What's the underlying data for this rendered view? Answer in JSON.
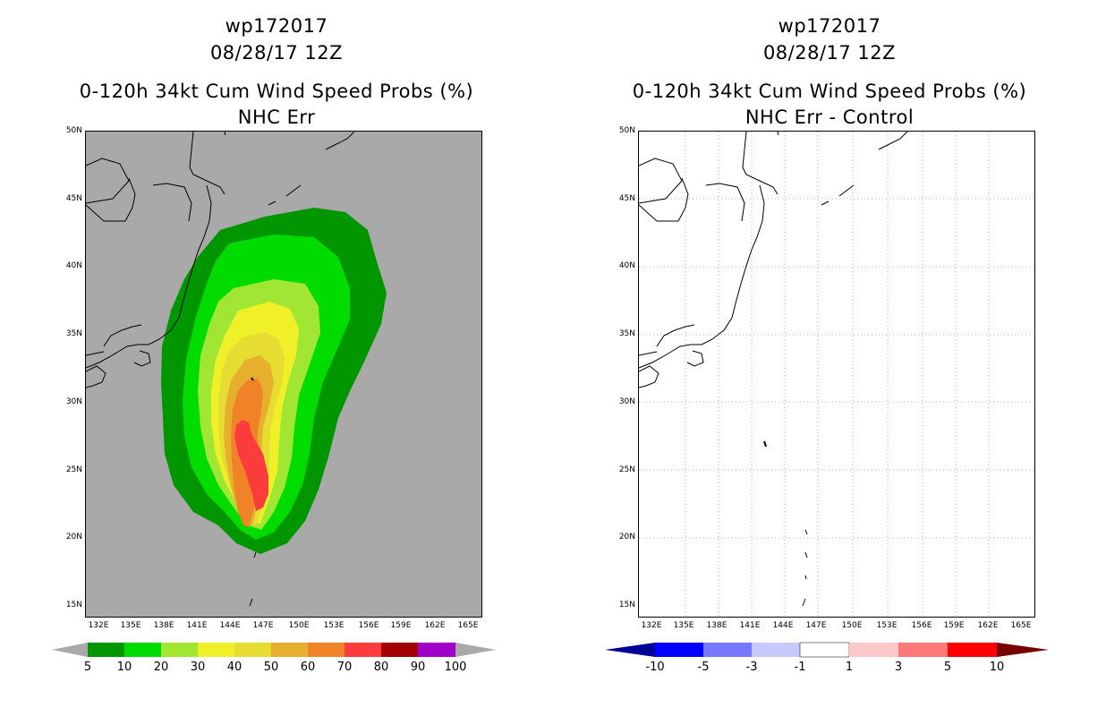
{
  "left_panel": {
    "storm_id": "wp172017",
    "datetime": "08/28/17 12Z",
    "product": "0-120h 34kt Cum Wind Speed Probs (%)",
    "subtitle": "NHC Err",
    "colors": {
      "ocean": "#a9a9a9",
      "coast": "#000000"
    },
    "colorbar": {
      "labels": [
        "5",
        "10",
        "20",
        "30",
        "40",
        "50",
        "60",
        "70",
        "80",
        "90",
        "100"
      ],
      "colors": [
        "#009600",
        "#00dc00",
        "#a0e632",
        "#f0f028",
        "#e6dc32",
        "#e6af2d",
        "#f08228",
        "#fa3c3c",
        "#a00000",
        "#a000c8"
      ],
      "end_color": "#a9a9a9"
    }
  },
  "right_panel": {
    "storm_id": "wp172017",
    "datetime": "08/28/17 12Z",
    "product": "0-120h 34kt Cum Wind Speed Probs (%)",
    "subtitle": "NHC Err - Control",
    "colorbar": {
      "labels": [
        "-10",
        "-5",
        "-3",
        "-1",
        "1",
        "3",
        "5",
        "10"
      ],
      "colors": [
        "#0000c8",
        "#0000ff",
        "#7878ff",
        "#c8c8ff",
        "#ffffff",
        "#ffc8c8",
        "#ff7878",
        "#ff0000",
        "#c80000"
      ],
      "end_colors": [
        "#000096",
        "#780000"
      ]
    }
  },
  "axes": {
    "lat_labels": [
      "50N",
      "45N",
      "40N",
      "35N",
      "30N",
      "25N",
      "20N",
      "15N"
    ],
    "lon_labels": [
      "132E",
      "135E",
      "138E",
      "141E",
      "144E",
      "147E",
      "150E",
      "153E",
      "156E",
      "159E",
      "162E",
      "165E"
    ]
  }
}
